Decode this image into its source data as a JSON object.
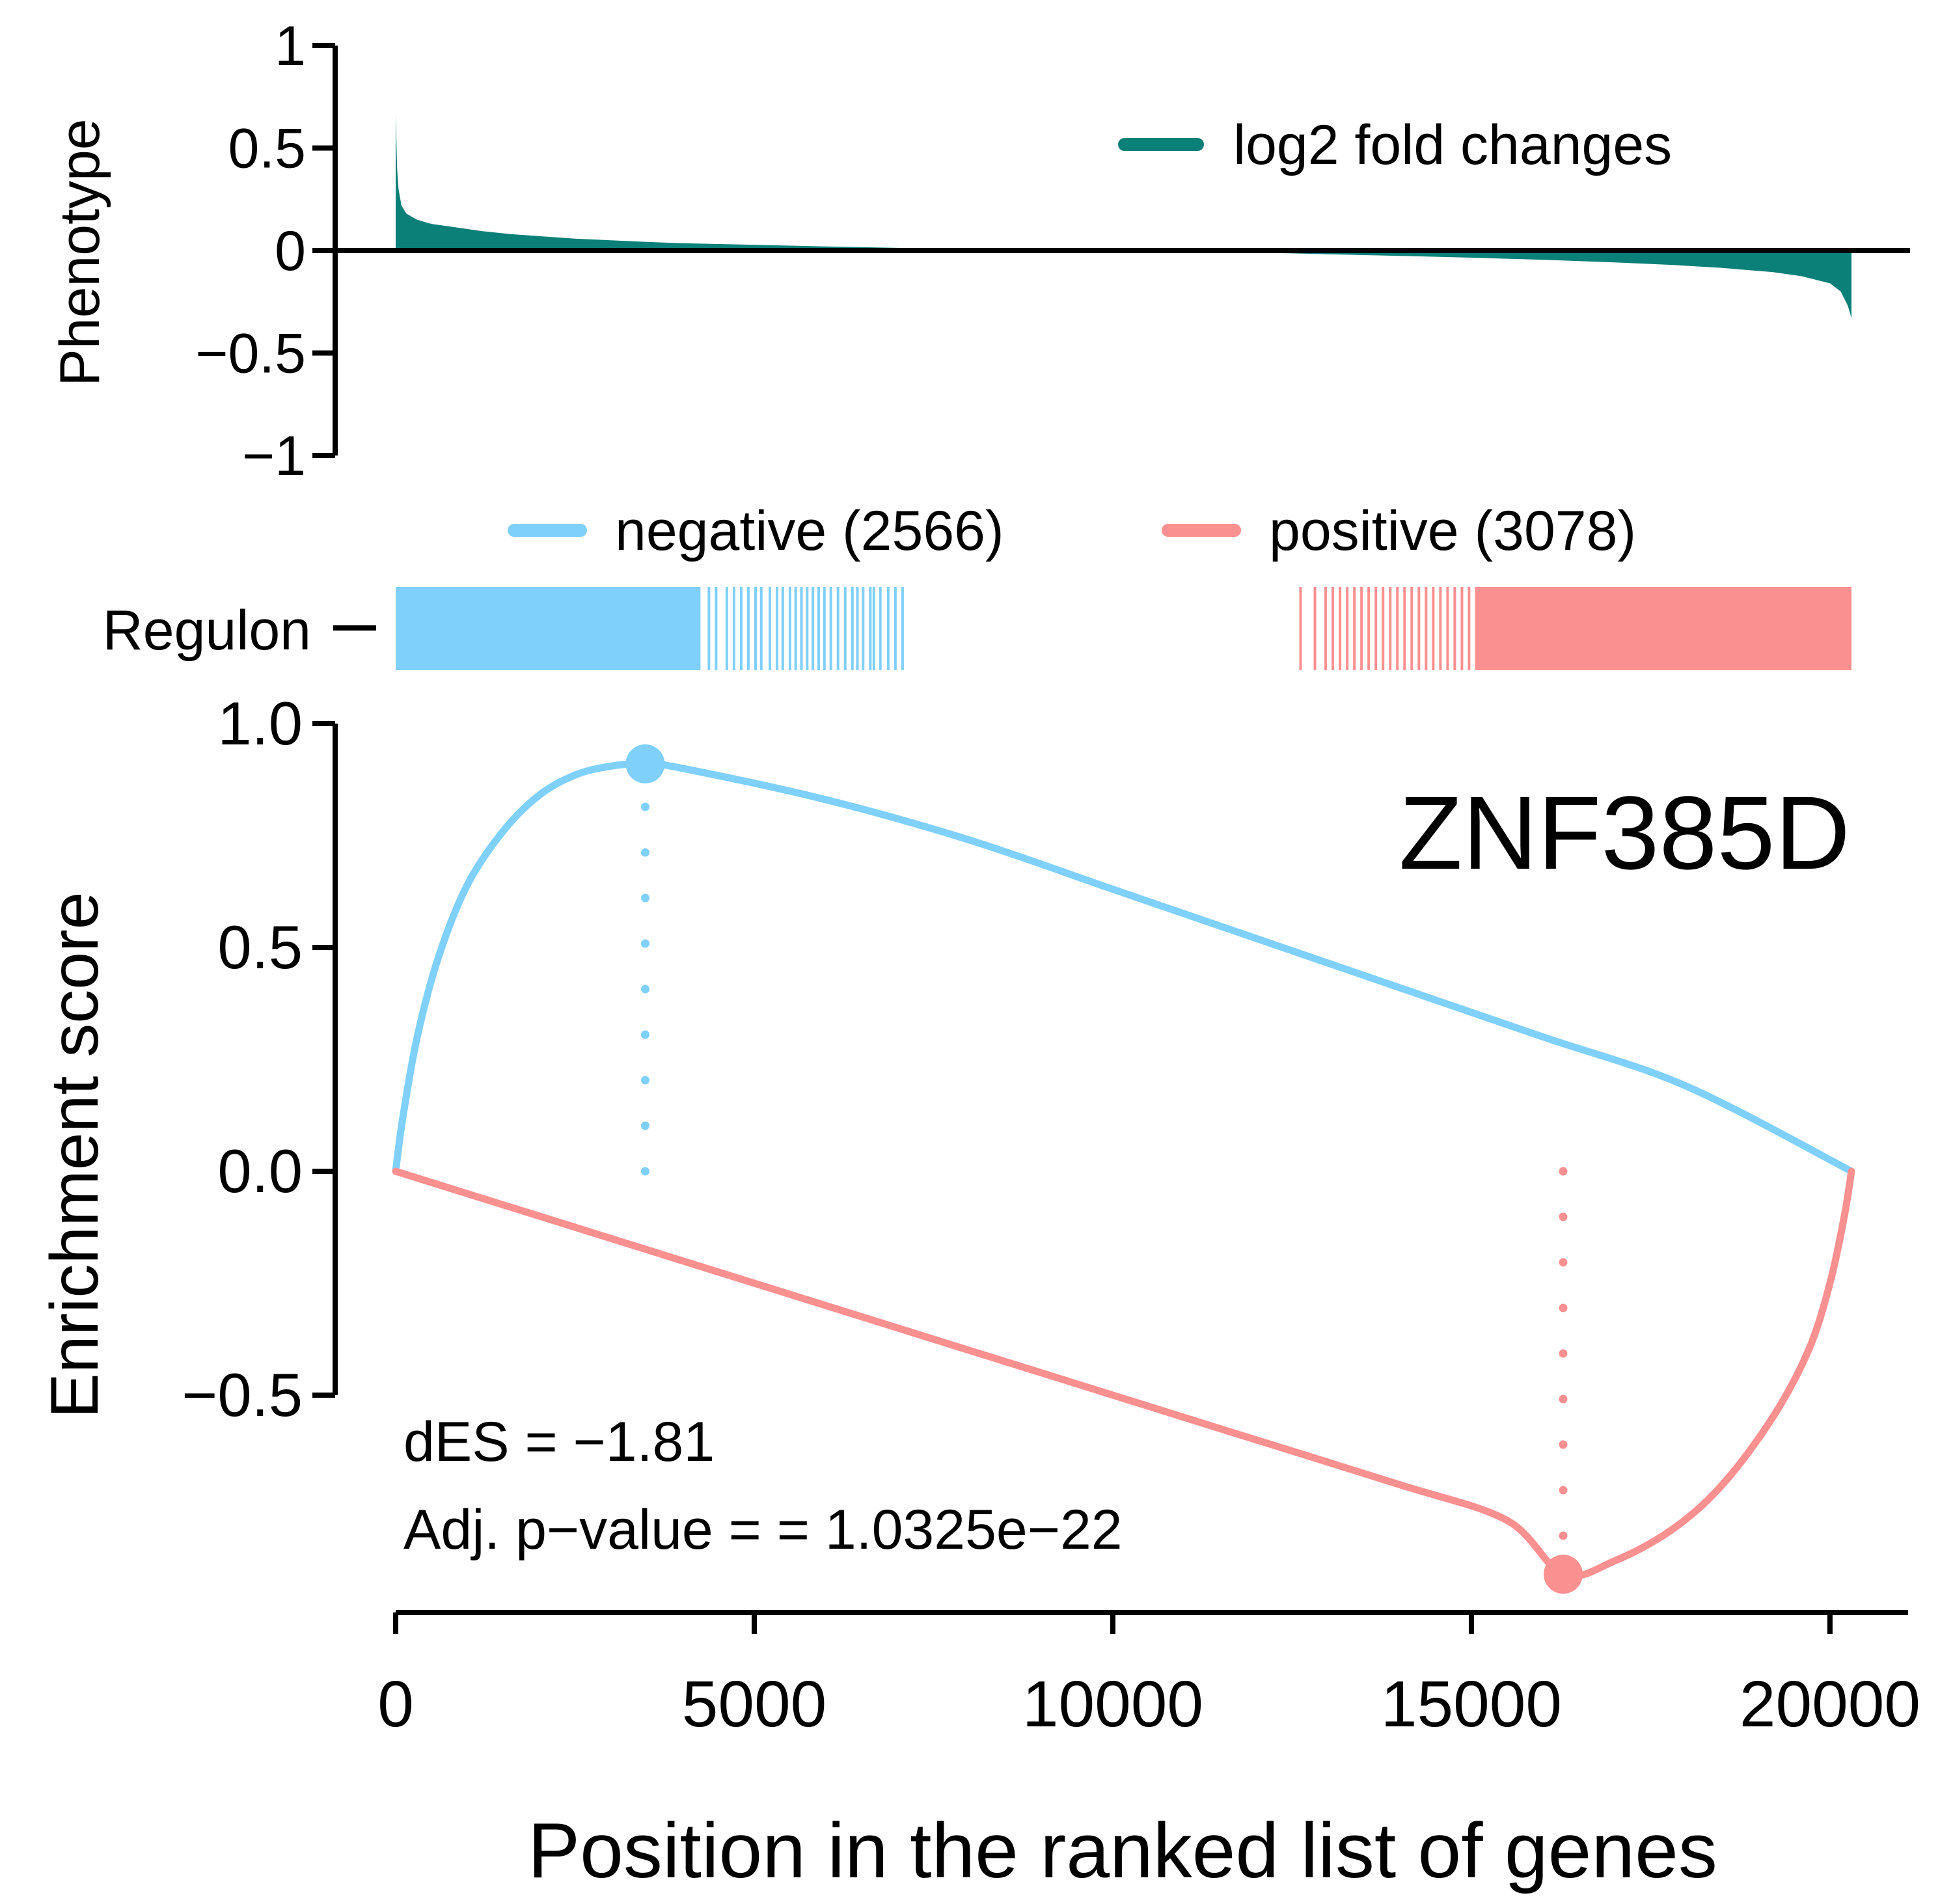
{
  "colors": {
    "phenotype": "#0b8078",
    "negative": "#7fd0fa",
    "positive": "#fb9090",
    "axis": "#000000"
  },
  "chart_data": [
    {
      "type": "area",
      "panel": "phenotype",
      "ylabel": "Phenotype",
      "ylim": [
        -1,
        1
      ],
      "yticks": [
        1,
        0.5,
        0,
        -0.5,
        -1
      ],
      "ytick_labels": [
        "1",
        "0.5",
        "0",
        "−0.5",
        "−1"
      ],
      "xlim": [
        0,
        20300
      ],
      "legend": {
        "label": "log2 fold changes",
        "position": "top-right"
      },
      "series": [
        {
          "name": "log2 fold changes",
          "x": [
            0,
            20,
            40,
            80,
            150,
            300,
            500,
            800,
            1200,
            1600,
            2000,
            2500,
            3000,
            3500,
            4000,
            5000,
            6000,
            7000,
            8000,
            9000,
            10000,
            11000,
            11600,
            12000,
            13000,
            14000,
            15000,
            16000,
            17000,
            17800,
            18500,
            19200,
            19600,
            20000,
            20150,
            20250,
            20300
          ],
          "y": [
            0.66,
            0.4,
            0.3,
            0.22,
            0.18,
            0.15,
            0.13,
            0.115,
            0.095,
            0.08,
            0.07,
            0.058,
            0.05,
            0.042,
            0.036,
            0.028,
            0.02,
            0.013,
            0.008,
            0.004,
            0.001,
            0.0,
            -0.005,
            -0.01,
            -0.018,
            -0.026,
            -0.035,
            -0.045,
            -0.058,
            -0.07,
            -0.085,
            -0.105,
            -0.125,
            -0.16,
            -0.2,
            -0.27,
            -0.33
          ]
        }
      ]
    },
    {
      "type": "barcode",
      "panel": "regulon",
      "row_label": "Regulon",
      "legend": [
        {
          "label": "negative (2566)",
          "color_key": "negative"
        },
        {
          "label": "positive (3078)",
          "color_key": "positive"
        }
      ],
      "negative": {
        "solid_range": [
          0,
          4250
        ],
        "scattered_lines": [
          4350,
          4450,
          4600,
          4700,
          4800,
          4900,
          5000,
          5080,
          5200,
          5300,
          5380,
          5480,
          5560,
          5640,
          5720,
          5800,
          5880,
          5960,
          6050,
          6150,
          6250,
          6350,
          6420,
          6500,
          6600,
          6650,
          6740,
          6850,
          6950,
          7050
        ]
      },
      "positive": {
        "solid_range": [
          15050,
          20300
        ],
        "scattered_lines": [
          12600,
          12800,
          12950,
          13050,
          13150,
          13250,
          13350,
          13450,
          13550,
          13650,
          13750,
          13850,
          13950,
          14050,
          14150,
          14250,
          14350,
          14450,
          14550,
          14650,
          14750,
          14850,
          14950
        ]
      }
    },
    {
      "type": "line",
      "panel": "enrichment",
      "title": "ZNF385D",
      "xlabel": "Position in the ranked list of genes",
      "ylabel": "Enrichment score",
      "xlim": [
        0,
        21200
      ],
      "ylim": [
        -0.9,
        1.0
      ],
      "xticks": [
        0,
        5000,
        10000,
        15000,
        20000
      ],
      "xtick_labels": [
        "0",
        "5000",
        "10000",
        "15000",
        "20000"
      ],
      "yticks": [
        1.0,
        0.5,
        0.0,
        -0.5
      ],
      "ytick_labels": [
        "1.0",
        "0.5",
        "0.0",
        "−0.5"
      ],
      "series": [
        {
          "name": "negative",
          "color_key": "negative",
          "x": [
            0,
            100,
            300,
            600,
            1000,
            1500,
            2000,
            2500,
            3000,
            3480,
            4000,
            6000,
            8000,
            10000,
            12000,
            14000,
            16000,
            18000,
            20300
          ],
          "y": [
            0.0,
            0.12,
            0.3,
            0.48,
            0.64,
            0.76,
            0.84,
            0.885,
            0.905,
            0.91,
            0.9,
            0.83,
            0.74,
            0.63,
            0.52,
            0.41,
            0.3,
            0.19,
            0.0
          ],
          "peak": {
            "x": 3480,
            "y": 0.91
          }
        },
        {
          "name": "positive",
          "color_key": "positive",
          "x": [
            0,
            2000,
            4000,
            6000,
            8000,
            10000,
            12000,
            14000,
            15500,
            16280,
            17000,
            17800,
            18500,
            19200,
            19700,
            20000,
            20200,
            20300
          ],
          "y": [
            0.0,
            -0.1,
            -0.2,
            -0.3,
            -0.4,
            -0.5,
            -0.6,
            -0.7,
            -0.78,
            -0.9,
            -0.87,
            -0.8,
            -0.7,
            -0.55,
            -0.4,
            -0.25,
            -0.1,
            0.0
          ],
          "peak": {
            "x": 16280,
            "y": -0.9
          }
        }
      ],
      "annotations": [
        "dES = −1.81",
        "Adj. p−value = = 1.0325e−22"
      ]
    }
  ]
}
